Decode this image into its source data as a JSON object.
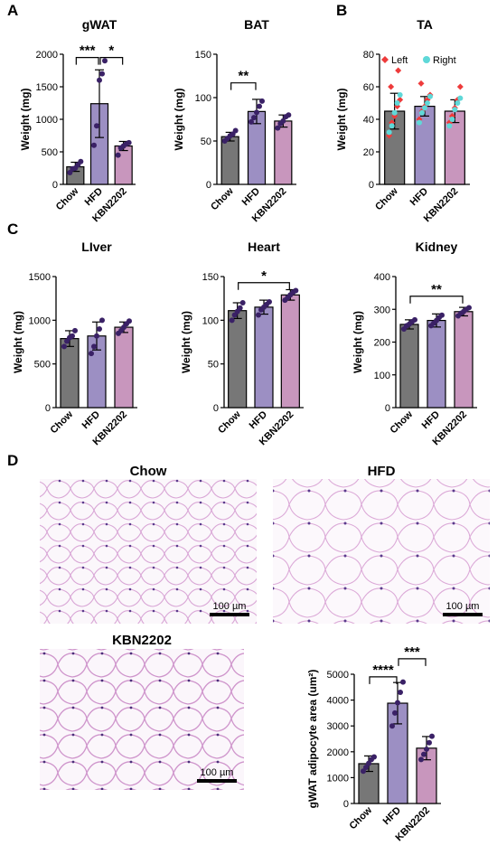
{
  "panel_letters": [
    "A",
    "B",
    "C",
    "D"
  ],
  "chart_data": [
    {
      "id": "gwat",
      "type": "bar",
      "title": "gWAT",
      "ylabel": "Weight (mg)",
      "categories": [
        "Chow",
        "HFD",
        "KBN2202"
      ],
      "values": [
        270,
        1240,
        590
      ],
      "errors": [
        70,
        520,
        70
      ],
      "ylim": [
        0,
        2000
      ],
      "yticks": [
        0,
        500,
        1000,
        1500,
        2000
      ],
      "points": [
        [
          180,
          240,
          250,
          300,
          350
        ],
        [
          600,
          900,
          1600,
          1700,
          1900
        ],
        [
          450,
          560,
          590,
          620,
          640
        ]
      ],
      "significance": [
        {
          "from": 0,
          "to": 1,
          "label": "***",
          "level": 1950
        },
        {
          "from": 1,
          "to": 2,
          "label": "*",
          "level": 1950
        }
      ]
    },
    {
      "id": "bat",
      "type": "bar",
      "title": "BAT",
      "ylabel": "Weight (mg)",
      "categories": [
        "Chow",
        "HFD",
        "KBN2202"
      ],
      "values": [
        55,
        84,
        73
      ],
      "errors": [
        5,
        14,
        7
      ],
      "ylim": [
        0,
        150
      ],
      "yticks": [
        0,
        50,
        100,
        150
      ],
      "points": [
        [
          50,
          53,
          56,
          58,
          62
        ],
        [
          72,
          77,
          83,
          90,
          96
        ],
        [
          65,
          70,
          73,
          78,
          80
        ]
      ],
      "significance": [
        {
          "from": 0,
          "to": 1,
          "label": "**",
          "level": 117
        }
      ]
    },
    {
      "id": "ta",
      "type": "bar",
      "title": "TA",
      "ylabel": "Weight (mg)",
      "categories": [
        "Chow",
        "HFD",
        "KBN2202"
      ],
      "values": [
        45,
        48,
        45
      ],
      "errors": [
        11,
        6,
        7
      ],
      "ylim": [
        0,
        80
      ],
      "yticks": [
        0,
        20,
        40,
        60,
        80
      ],
      "legend": [
        {
          "name": "Left",
          "color": "#ee3b3b"
        },
        {
          "name": "Right",
          "color": "#5fd8d8"
        }
      ],
      "points_left": [
        [
          30,
          38,
          42,
          48,
          52,
          60,
          70
        ],
        [
          40,
          45,
          48,
          52,
          55,
          62
        ],
        [
          38,
          42,
          47,
          52,
          60
        ]
      ],
      "points_right": [
        [
          32,
          36,
          44,
          50,
          55
        ],
        [
          38,
          44,
          47,
          50,
          54
        ],
        [
          36,
          40,
          46,
          50,
          53
        ]
      ],
      "significance": []
    },
    {
      "id": "liver",
      "type": "bar",
      "title": "LIver",
      "ylabel": "Weight (mg)",
      "categories": [
        "Chow",
        "HFD",
        "KBN2202"
      ],
      "values": [
        790,
        820,
        920
      ],
      "errors": [
        90,
        160,
        60
      ],
      "ylim": [
        0,
        1500
      ],
      "yticks": [
        0,
        500,
        1000,
        1500
      ],
      "points": [
        [
          700,
          760,
          800,
          820,
          880
        ],
        [
          620,
          700,
          820,
          900,
          1000
        ],
        [
          850,
          880,
          920,
          960,
          990
        ]
      ],
      "significance": []
    },
    {
      "id": "heart",
      "type": "bar",
      "title": "Heart",
      "ylabel": "Weight (mg)",
      "categories": [
        "Chow",
        "HFD",
        "KBN2202"
      ],
      "values": [
        111,
        115,
        129
      ],
      "errors": [
        9,
        8,
        6
      ],
      "ylim": [
        0,
        150
      ],
      "yticks": [
        0,
        50,
        100,
        150
      ],
      "points": [
        [
          100,
          106,
          110,
          114,
          120
        ],
        [
          106,
          112,
          115,
          118,
          121
        ],
        [
          123,
          126,
          129,
          132,
          134
        ]
      ],
      "significance": [
        {
          "from": 0,
          "to": 2,
          "label": "*",
          "level": 143
        }
      ]
    },
    {
      "id": "kidney",
      "type": "bar",
      "title": "Kidney",
      "ylabel": "Weight (mg)",
      "categories": [
        "Chow",
        "HFD",
        "KBN2202"
      ],
      "values": [
        254,
        266,
        293
      ],
      "errors": [
        14,
        20,
        13
      ],
      "ylim": [
        0,
        400
      ],
      "yticks": [
        0,
        100,
        200,
        300,
        400
      ],
      "points": [
        [
          240,
          250,
          255,
          262,
          268
        ],
        [
          250,
          258,
          266,
          275,
          282
        ],
        [
          280,
          288,
          293,
          300,
          305
        ]
      ],
      "significance": [
        {
          "from": 0,
          "to": 2,
          "label": "**",
          "level": 340
        }
      ]
    },
    {
      "id": "adipo",
      "type": "bar",
      "title": "",
      "ylabel": "gWAT adipocyte area (um²)",
      "categories": [
        "Chow",
        "HFD",
        "KBN2202"
      ],
      "values": [
        1540,
        3880,
        2140
      ],
      "errors": [
        300,
        800,
        450
      ],
      "ylim": [
        0,
        5000
      ],
      "yticks": [
        0,
        1000,
        2000,
        3000,
        4000,
        5000
      ],
      "points": [
        [
          1250,
          1400,
          1550,
          1700,
          1800
        ],
        [
          3000,
          3500,
          3900,
          4300,
          4700
        ],
        [
          1700,
          1900,
          2100,
          2350,
          2600
        ]
      ],
      "significance": [
        {
          "from": 0,
          "to": 1,
          "label": "****",
          "level": 4900
        },
        {
          "from": 1,
          "to": 2,
          "label": "***",
          "level": 5600
        }
      ]
    }
  ],
  "colors": {
    "chow": "#777777",
    "hfd": "#9c8fc3",
    "kbn": "#c896bd",
    "dot": "#3a2166"
  },
  "micrographs": [
    {
      "id": "chow",
      "title": "Chow",
      "scale": "100 µm"
    },
    {
      "id": "hfd",
      "title": "HFD",
      "scale": "100 µm"
    },
    {
      "id": "kbn",
      "title": "KBN2202",
      "scale": "100 µm"
    }
  ]
}
